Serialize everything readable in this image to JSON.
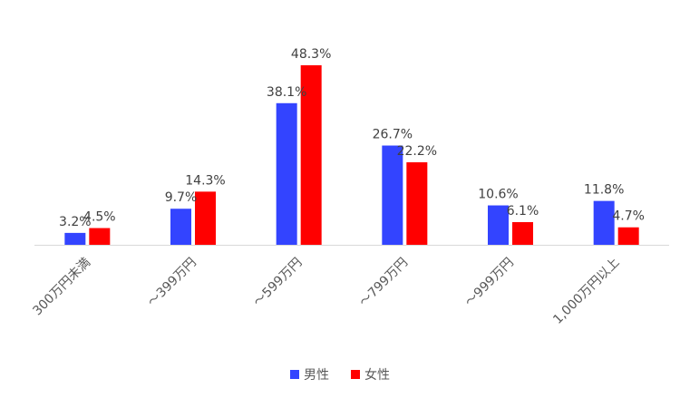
{
  "chart_data": {
    "type": "bar",
    "title": "",
    "xlabel": "",
    "ylabel": "",
    "ylim": [
      0,
      50
    ],
    "grid": false,
    "legend_position": "bottom",
    "value_suffix": "%",
    "categories": [
      "300万円未満",
      "～399万円",
      "～599万円",
      "～799万円",
      "～999万円",
      "1,000万円以上"
    ],
    "series": [
      {
        "name": "男性",
        "color": "#3344ff",
        "values": [
          3.2,
          9.7,
          38.1,
          26.7,
          10.6,
          11.8
        ]
      },
      {
        "name": "女性",
        "color": "#ff0000",
        "values": [
          4.5,
          14.3,
          48.3,
          22.2,
          6.1,
          4.7
        ]
      }
    ]
  }
}
